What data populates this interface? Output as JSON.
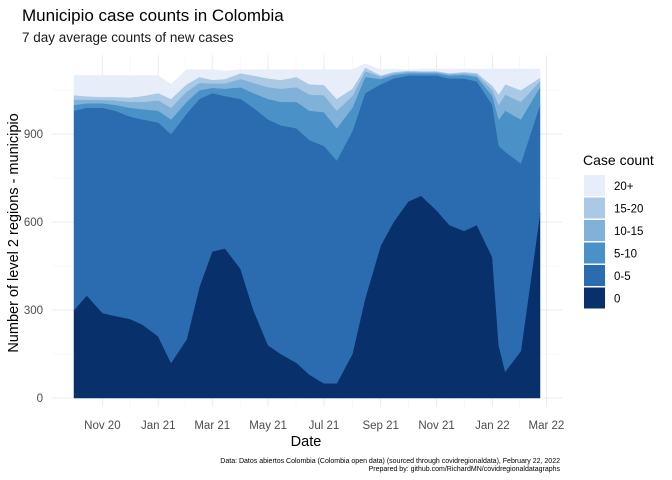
{
  "chart_data": {
    "type": "area",
    "stacked": true,
    "title": "Municipio case counts in Colombia",
    "subtitle": "7 day average counts of new cases",
    "xlabel": "Date",
    "ylabel": "Number of level 2 regions - municipio",
    "caption_line1": "Data: Datos abiertos Colombia (Colombia open data) (sourced through covidregionaldata), February 22, 2022",
    "caption_line2": "Prepared by: github.com/RichardMN/covidregionaldatagraphs",
    "x_range": [
      "2020-10-01",
      "2022-02-22"
    ],
    "x_ticks": [
      {
        "date": "2020-11-01",
        "label": "Nov 20"
      },
      {
        "date": "2021-01-01",
        "label": "Jan 21"
      },
      {
        "date": "2021-03-01",
        "label": "Mar 21"
      },
      {
        "date": "2021-05-01",
        "label": "May 21"
      },
      {
        "date": "2021-07-01",
        "label": "Jul 21"
      },
      {
        "date": "2021-09-01",
        "label": "Sep 21"
      },
      {
        "date": "2021-11-01",
        "label": "Nov 21"
      },
      {
        "date": "2022-01-01",
        "label": "Jan 22"
      },
      {
        "date": "2022-03-01",
        "label": "Mar 22"
      }
    ],
    "y_ticks": [
      0,
      300,
      600,
      900
    ],
    "ylim": [
      0,
      1122
    ],
    "grid": true,
    "legend_title": "Case count",
    "legend_position": "right",
    "legend_order": [
      "20+",
      "15-20",
      "10-15",
      "5-10",
      "0-5",
      "0"
    ],
    "x": [
      "2020-10-01",
      "2020-10-15",
      "2020-11-01",
      "2020-11-15",
      "2020-12-01",
      "2020-12-15",
      "2021-01-01",
      "2021-01-15",
      "2021-02-01",
      "2021-02-15",
      "2021-03-01",
      "2021-03-15",
      "2021-04-01",
      "2021-04-15",
      "2021-05-01",
      "2021-05-15",
      "2021-06-01",
      "2021-06-15",
      "2021-07-01",
      "2021-07-15",
      "2021-08-01",
      "2021-08-15",
      "2021-09-01",
      "2021-09-15",
      "2021-10-01",
      "2021-10-15",
      "2021-11-01",
      "2021-11-15",
      "2021-12-01",
      "2021-12-15",
      "2022-01-01",
      "2022-01-08",
      "2022-01-15",
      "2022-02-01",
      "2022-02-22"
    ],
    "series": [
      {
        "name": "0",
        "color": "#08306b",
        "values": [
          300,
          350,
          290,
          280,
          270,
          250,
          210,
          120,
          200,
          380,
          500,
          510,
          440,
          300,
          180,
          150,
          120,
          80,
          50,
          50,
          150,
          340,
          520,
          600,
          670,
          690,
          640,
          590,
          570,
          590,
          480,
          180,
          90,
          160,
          630
        ]
      },
      {
        "name": "0-5",
        "color": "#2b6cb0",
        "values": [
          680,
          640,
          700,
          700,
          690,
          700,
          730,
          780,
          770,
          640,
          540,
          520,
          580,
          690,
          770,
          780,
          800,
          800,
          810,
          760,
          760,
          700,
          550,
          490,
          430,
          410,
          460,
          500,
          520,
          490,
          520,
          680,
          750,
          640,
          370
        ]
      },
      {
        "name": "5-10",
        "color": "#4a91c8",
        "values": [
          20,
          15,
          15,
          20,
          30,
          35,
          40,
          50,
          40,
          30,
          18,
          25,
          40,
          50,
          70,
          80,
          90,
          100,
          115,
          110,
          80,
          55,
          18,
          12,
          8,
          8,
          8,
          10,
          12,
          15,
          30,
          90,
          140,
          150,
          60
        ]
      },
      {
        "name": "10-15",
        "color": "#80b1d9",
        "values": [
          18,
          12,
          12,
          15,
          20,
          25,
          35,
          40,
          35,
          25,
          15,
          18,
          28,
          35,
          40,
          45,
          50,
          55,
          58,
          60,
          40,
          20,
          8,
          6,
          5,
          4,
          4,
          5,
          6,
          8,
          20,
          50,
          55,
          60,
          20
        ]
      },
      {
        "name": "15-20",
        "color": "#aac9e5",
        "values": [
          15,
          12,
          10,
          12,
          15,
          20,
          25,
          30,
          25,
          20,
          12,
          15,
          20,
          25,
          30,
          30,
          35,
          35,
          35,
          40,
          25,
          12,
          5,
          4,
          4,
          3,
          3,
          3,
          4,
          6,
          15,
          35,
          35,
          40,
          12
        ]
      },
      {
        "name": "20+",
        "color": "#e8eef9",
        "values": [
          67,
          71,
          73,
          73,
          75,
          70,
          60,
          50,
          50,
          25,
          35,
          27,
          12,
          20,
          30,
          35,
          25,
          50,
          52,
          100,
          65,
          13,
          19,
          10,
          2,
          7,
          7,
          14,
          10,
          13,
          57,
          87,
          52,
          72,
          30
        ]
      }
    ]
  }
}
